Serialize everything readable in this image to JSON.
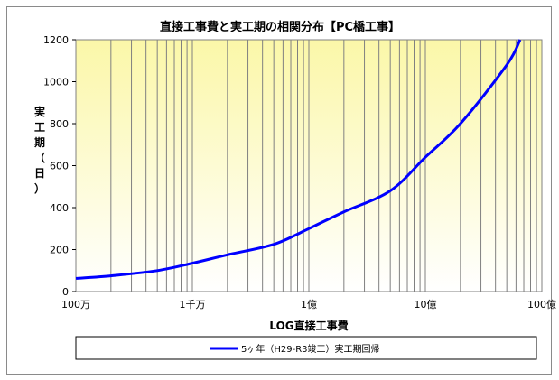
{
  "chart_data": {
    "type": "line",
    "title": "直接工事費と実工期の相関分布【PC橋工事】",
    "xlabel": "LOG直接工事費",
    "ylabel_chars": [
      "実",
      "工",
      "期",
      "（",
      "日",
      "）"
    ],
    "x_scale": "log",
    "xlim": [
      1000000,
      10000000000
    ],
    "ylim": [
      0,
      1200
    ],
    "y_ticks": [
      0,
      200,
      400,
      600,
      800,
      1000,
      1200
    ],
    "x_ticks": [
      {
        "value": 1000000,
        "label": "100万"
      },
      {
        "value": 10000000,
        "label": "1千万"
      },
      {
        "value": 100000000,
        "label": "1億"
      },
      {
        "value": 1000000000,
        "label": "10億"
      },
      {
        "value": 10000000000,
        "label": "100億"
      }
    ],
    "grid": "vertical log minor lines",
    "legend_position": "bottom",
    "series": [
      {
        "name": "5ヶ年（H29-R3竣工）実工期回帰",
        "color": "#0000ff",
        "points": [
          [
            1000000,
            63
          ],
          [
            2000000,
            75
          ],
          [
            5000000,
            100
          ],
          [
            10000000,
            135
          ],
          [
            20000000,
            175
          ],
          [
            50000000,
            225
          ],
          [
            100000000,
            300
          ],
          [
            200000000,
            380
          ],
          [
            500000000,
            480
          ],
          [
            1000000000,
            640
          ],
          [
            2000000000,
            800
          ],
          [
            5000000000,
            1080
          ],
          [
            6500000000,
            1200
          ]
        ]
      }
    ],
    "colors": {
      "plot_bg_top": "#fbf7a8",
      "plot_bg_bottom": "#ffffff",
      "grid": "#808080",
      "line": "#0000ff"
    }
  }
}
